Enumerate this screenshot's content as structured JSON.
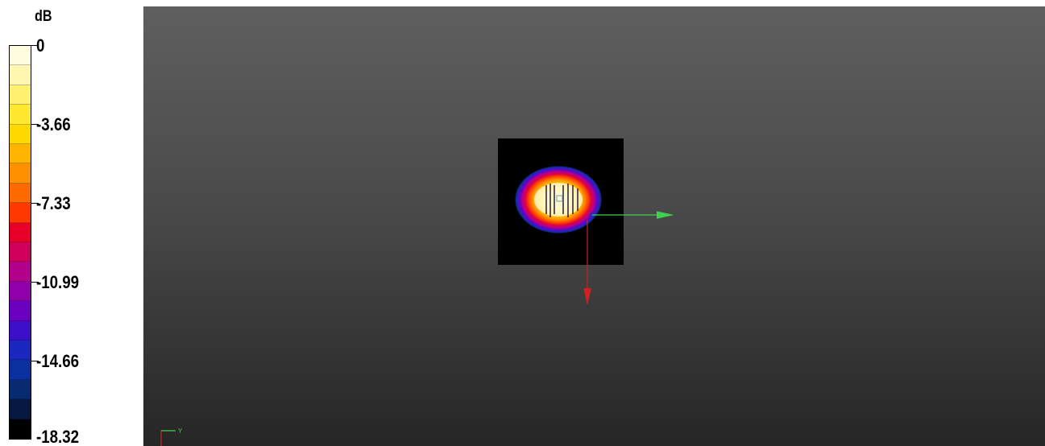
{
  "legend": {
    "unit": "dB",
    "labels": [
      "0",
      "-3.66",
      "-7.33",
      "-10.99",
      "-14.66",
      "-18.32"
    ],
    "swatches": [
      "#fffce0",
      "#fff7b0",
      "#fff070",
      "#ffe930",
      "#ffd800",
      "#ffb400",
      "#ff9000",
      "#ff6a00",
      "#ff3800",
      "#e8002a",
      "#d0005a",
      "#b2008a",
      "#9000aa",
      "#6a00c0",
      "#3c10c8",
      "#1a28c0",
      "#0a30a0",
      "#082a70",
      "#061840",
      "#000000"
    ]
  },
  "viewport": {
    "background_top": "#5f5f5f",
    "background_bottom": "#262626",
    "plane_color": "#000000",
    "x_axis_color": "#3fd14f",
    "y_axis_color": "#d21f1f",
    "triad_label": "Y"
  }
}
